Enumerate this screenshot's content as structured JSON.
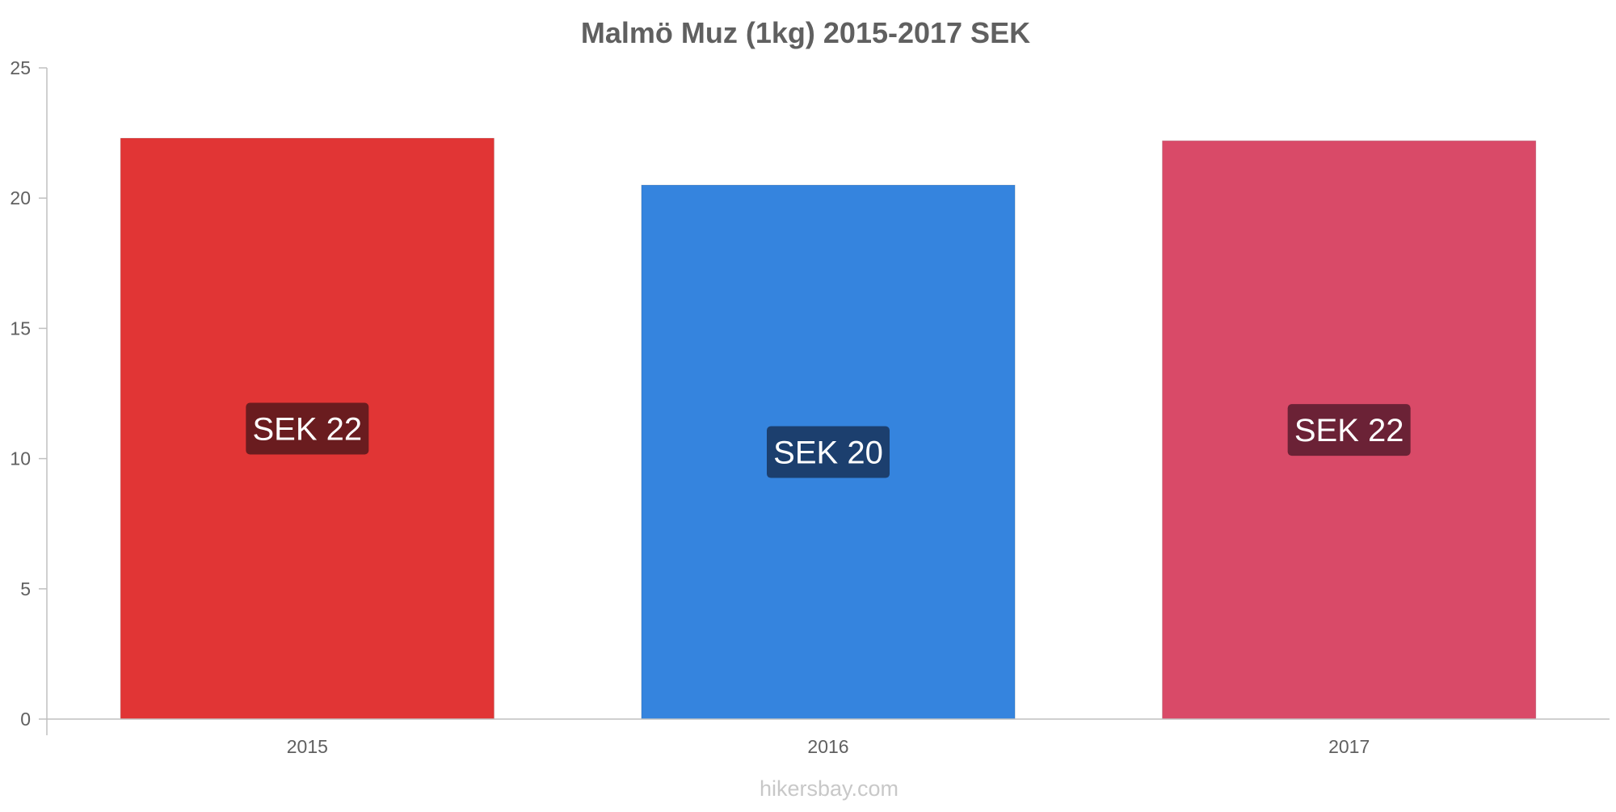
{
  "chart_data": {
    "type": "bar",
    "title": "Malmö Muz (1kg) 2015-2017 SEK",
    "categories": [
      "2015",
      "2016",
      "2017"
    ],
    "values": [
      22.3,
      20.5,
      22.2
    ],
    "value_labels": [
      "SEK 22",
      "SEK 20",
      "SEK 22"
    ],
    "bar_colors": [
      "#e13535",
      "#3584de",
      "#d94a68"
    ],
    "label_bg_colors": [
      "#6a1c1f",
      "#1c3f6e",
      "#6b2236"
    ],
    "ylim": [
      0,
      25
    ],
    "yticks": [
      "0",
      "5",
      "10",
      "15",
      "20",
      "25"
    ],
    "ytick_values": [
      0,
      5,
      10,
      15,
      20,
      25
    ],
    "xlabel": "",
    "ylabel": "",
    "grid": false,
    "legend": "none"
  },
  "watermark": "hikersbay.com"
}
